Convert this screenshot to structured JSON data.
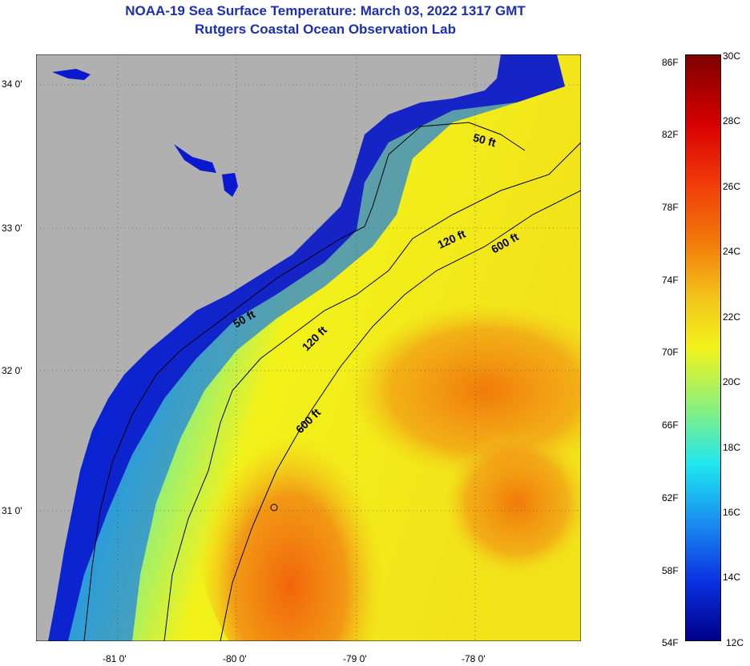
{
  "title": {
    "line1": "NOAA-19 Sea Surface Temperature:  March 03, 2022 1317 GMT",
    "line2": "Rutgers Coastal Ocean Observation Lab"
  },
  "axes": {
    "lat_ticks": [
      "34 0'",
      "33 0'",
      "32 0'",
      "31 0'"
    ],
    "lon_ticks": [
      "-81 0'",
      "-80 0'",
      "-79 0'",
      "-78 0'"
    ]
  },
  "contours": {
    "label_50_upper": "50 ft",
    "label_50_lower": "50 ft",
    "label_120_upper": "120 ft",
    "label_120_lower": "120 ft",
    "label_600_upper": "600 ft",
    "label_600_lower": "600 ft"
  },
  "colorbar": {
    "fahrenheit": [
      "86F",
      "82F",
      "78F",
      "74F",
      "70F",
      "66F",
      "62F",
      "58F",
      "54F"
    ],
    "celsius": [
      "30C",
      "28C",
      "26C",
      "24C",
      "22C",
      "20C",
      "18C",
      "16C",
      "14C",
      "12C"
    ],
    "min_f": 54,
    "max_f": 86,
    "min_c": 12,
    "max_c": 30
  },
  "colors": {
    "land": "#b0b0b0",
    "title_text": "#1c2fb0",
    "deep_blue": "#0a14d8",
    "cyan": "#1ee6f0",
    "yellow": "#f2f21a",
    "orange": "#f2780a"
  }
}
